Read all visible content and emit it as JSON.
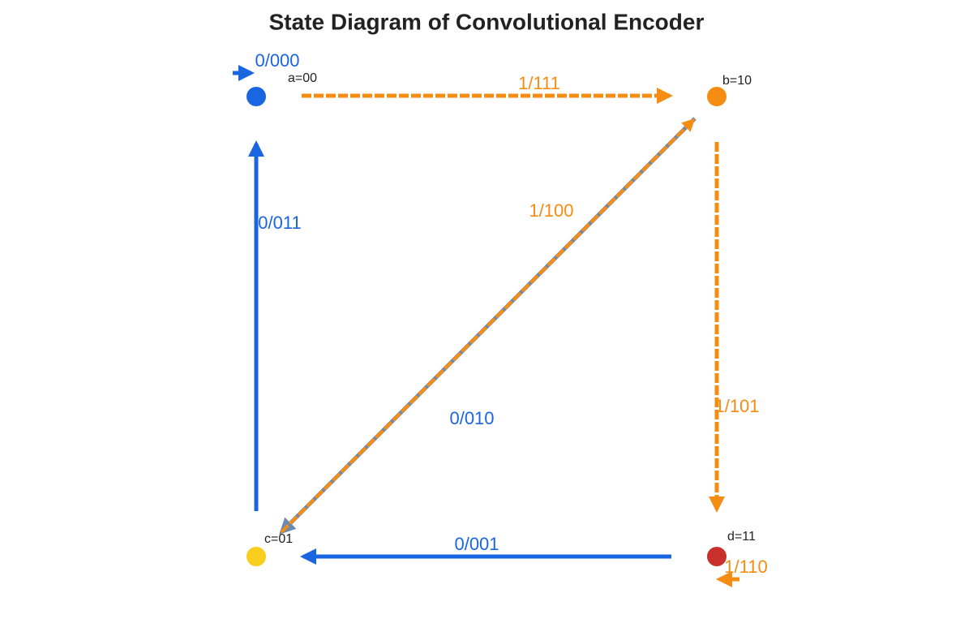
{
  "title": "State Diagram of Convolutional Encoder",
  "nodes": [
    {
      "label": "a=00"
    },
    {
      "label": "b=10"
    },
    {
      "label": "c=01"
    },
    {
      "label": "d=11"
    }
  ],
  "edges": [
    {
      "label": "0/000"
    },
    {
      "label": "1/111"
    },
    {
      "label": "0/011"
    },
    {
      "label": "1/100"
    },
    {
      "label": "0/010"
    },
    {
      "label": "1/101"
    },
    {
      "label": "0/001"
    },
    {
      "label": "1/110"
    }
  ]
}
